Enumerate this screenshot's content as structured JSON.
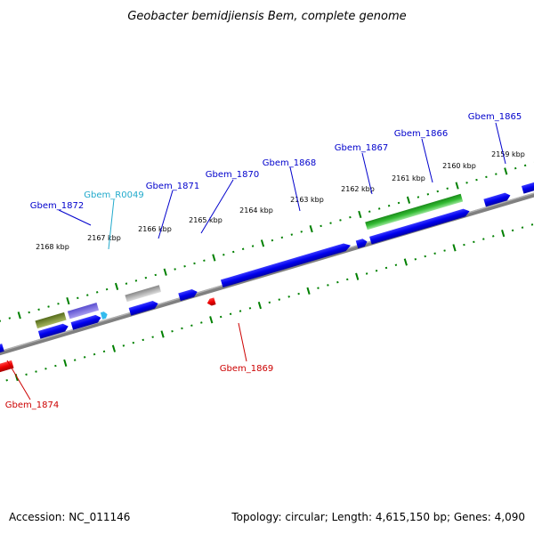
{
  "title": "Geobacter bemidjiensis Bem, complete genome",
  "footer": {
    "accession": "Accession: NC_011146",
    "stats": "Topology: circular; Length: 4,615,150 bp; Genes: 4,090"
  },
  "colors": {
    "forward_gene": "#0000ee",
    "reverse_gene": "#ee0000",
    "backbone": "#808080",
    "tick": "#008000",
    "label_blue": "#0000cc",
    "label_red": "#cc0000",
    "label_trna": "#22aacc"
  },
  "tick_labels": [
    "2159 kbp",
    "2160 kbp",
    "2161 kbp",
    "2162 kbp",
    "2163 kbp",
    "2164 kbp",
    "2165 kbp",
    "2166 kbp",
    "2167 kbp",
    "2168 kbp"
  ],
  "gene_labels": [
    {
      "name": "Gbem_1865",
      "color": "blue"
    },
    {
      "name": "Gbem_1866",
      "color": "blue"
    },
    {
      "name": "Gbem_1867",
      "color": "blue"
    },
    {
      "name": "Gbem_1868",
      "color": "blue"
    },
    {
      "name": "Gbem_1870",
      "color": "blue"
    },
    {
      "name": "Gbem_1871",
      "color": "blue"
    },
    {
      "name": "Gbem_R0049",
      "color": "trna"
    },
    {
      "name": "Gbem_1872",
      "color": "blue"
    },
    {
      "name": "Gbem_1869",
      "color": "red"
    },
    {
      "name": "Gbem_1874",
      "color": "red"
    }
  ]
}
